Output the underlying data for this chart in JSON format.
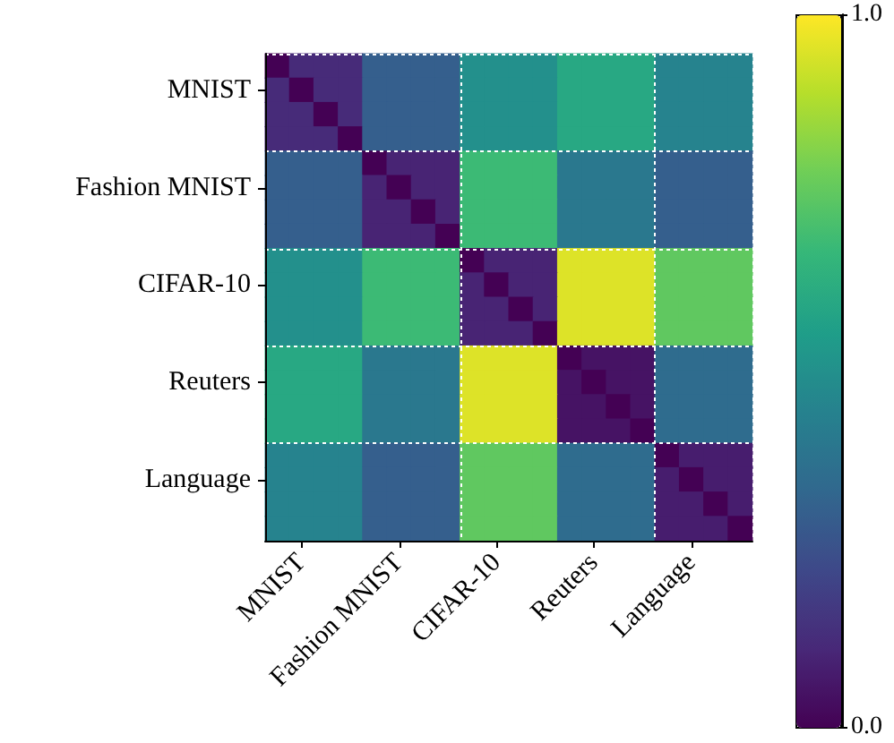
{
  "chart_data": {
    "type": "heatmap",
    "categories": [
      null,
      "MNIST",
      null,
      null,
      null,
      "Fashion MNIST",
      null,
      null,
      null,
      "CIFAR-10",
      null,
      null,
      null,
      "Reuters",
      null,
      null,
      null,
      "Language",
      null,
      null
    ],
    "y_categories": [
      null,
      "MNIST",
      null,
      null,
      null,
      "Fashion MNIST",
      null,
      null,
      null,
      "CIFAR-10",
      null,
      null,
      null,
      "Reuters",
      null,
      null,
      null,
      "Language",
      null,
      null
    ],
    "cells": [
      [
        0,
        0.12,
        0.12,
        0.12,
        0.3,
        0.3,
        0.3,
        0.3,
        0.5,
        0.5,
        0.5,
        0.5,
        0.6,
        0.6,
        0.6,
        0.6,
        0.45,
        0.45,
        0.45,
        0.45
      ],
      [
        0.12,
        0,
        0.12,
        0.12,
        0.3,
        0.3,
        0.3,
        0.3,
        0.5,
        0.5,
        0.5,
        0.5,
        0.6,
        0.6,
        0.6,
        0.6,
        0.45,
        0.45,
        0.45,
        0.45
      ],
      [
        0.12,
        0.12,
        0,
        0.12,
        0.3,
        0.3,
        0.3,
        0.3,
        0.5,
        0.5,
        0.5,
        0.5,
        0.6,
        0.6,
        0.6,
        0.6,
        0.45,
        0.45,
        0.45,
        0.45
      ],
      [
        0.12,
        0.12,
        0.12,
        0,
        0.3,
        0.3,
        0.3,
        0.3,
        0.5,
        0.5,
        0.5,
        0.5,
        0.6,
        0.6,
        0.6,
        0.6,
        0.45,
        0.45,
        0.45,
        0.45
      ],
      [
        0.3,
        0.3,
        0.3,
        0.3,
        0,
        0.1,
        0.1,
        0.1,
        0.68,
        0.68,
        0.68,
        0.68,
        0.4,
        0.4,
        0.4,
        0.4,
        0.3,
        0.3,
        0.3,
        0.3
      ],
      [
        0.3,
        0.3,
        0.3,
        0.3,
        0.1,
        0,
        0.1,
        0.1,
        0.68,
        0.68,
        0.68,
        0.68,
        0.4,
        0.4,
        0.4,
        0.4,
        0.3,
        0.3,
        0.3,
        0.3
      ],
      [
        0.3,
        0.3,
        0.3,
        0.3,
        0.1,
        0.1,
        0,
        0.1,
        0.68,
        0.68,
        0.68,
        0.68,
        0.4,
        0.4,
        0.4,
        0.4,
        0.3,
        0.3,
        0.3,
        0.3
      ],
      [
        0.3,
        0.3,
        0.3,
        0.3,
        0.1,
        0.1,
        0.1,
        0,
        0.68,
        0.68,
        0.68,
        0.68,
        0.4,
        0.4,
        0.4,
        0.4,
        0.3,
        0.3,
        0.3,
        0.3
      ],
      [
        0.5,
        0.5,
        0.5,
        0.5,
        0.68,
        0.68,
        0.68,
        0.68,
        0,
        0.1,
        0.1,
        0.1,
        0.95,
        0.95,
        0.95,
        0.95,
        0.75,
        0.75,
        0.75,
        0.75
      ],
      [
        0.5,
        0.5,
        0.5,
        0.5,
        0.68,
        0.68,
        0.68,
        0.68,
        0.1,
        0,
        0.1,
        0.1,
        0.95,
        0.95,
        0.95,
        0.95,
        0.75,
        0.75,
        0.75,
        0.75
      ],
      [
        0.5,
        0.5,
        0.5,
        0.5,
        0.68,
        0.68,
        0.68,
        0.68,
        0.1,
        0.1,
        0,
        0.1,
        0.95,
        0.95,
        0.95,
        0.95,
        0.75,
        0.75,
        0.75,
        0.75
      ],
      [
        0.5,
        0.5,
        0.5,
        0.5,
        0.68,
        0.68,
        0.68,
        0.68,
        0.1,
        0.1,
        0.1,
        0,
        0.95,
        0.95,
        0.95,
        0.95,
        0.75,
        0.75,
        0.75,
        0.75
      ],
      [
        0.6,
        0.6,
        0.6,
        0.6,
        0.4,
        0.4,
        0.4,
        0.4,
        0.95,
        0.95,
        0.95,
        0.95,
        0,
        0.05,
        0.05,
        0.05,
        0.35,
        0.35,
        0.35,
        0.35
      ],
      [
        0.6,
        0.6,
        0.6,
        0.6,
        0.4,
        0.4,
        0.4,
        0.4,
        0.95,
        0.95,
        0.95,
        0.95,
        0.05,
        0,
        0.05,
        0.05,
        0.35,
        0.35,
        0.35,
        0.35
      ],
      [
        0.6,
        0.6,
        0.6,
        0.6,
        0.4,
        0.4,
        0.4,
        0.4,
        0.95,
        0.95,
        0.95,
        0.95,
        0.05,
        0.05,
        0,
        0.05,
        0.35,
        0.35,
        0.35,
        0.35
      ],
      [
        0.6,
        0.6,
        0.6,
        0.6,
        0.4,
        0.4,
        0.4,
        0.4,
        0.95,
        0.95,
        0.95,
        0.95,
        0.05,
        0.05,
        0.05,
        0,
        0.35,
        0.35,
        0.35,
        0.35
      ],
      [
        0.45,
        0.45,
        0.45,
        0.45,
        0.3,
        0.3,
        0.3,
        0.3,
        0.75,
        0.75,
        0.75,
        0.75,
        0.35,
        0.35,
        0.35,
        0.35,
        0,
        0.08,
        0.08,
        0.08
      ],
      [
        0.45,
        0.45,
        0.45,
        0.45,
        0.3,
        0.3,
        0.3,
        0.3,
        0.75,
        0.75,
        0.75,
        0.75,
        0.35,
        0.35,
        0.35,
        0.35,
        0.08,
        0,
        0.08,
        0.08
      ],
      [
        0.45,
        0.45,
        0.45,
        0.45,
        0.3,
        0.3,
        0.3,
        0.3,
        0.75,
        0.75,
        0.75,
        0.75,
        0.35,
        0.35,
        0.35,
        0.35,
        0.08,
        0.08,
        0,
        0.08
      ],
      [
        0.45,
        0.45,
        0.45,
        0.45,
        0.3,
        0.3,
        0.3,
        0.3,
        0.75,
        0.75,
        0.75,
        0.75,
        0.35,
        0.35,
        0.35,
        0.35,
        0.08,
        0.08,
        0.08,
        0
      ]
    ],
    "clim": [
      0,
      1
    ],
    "cticks": [
      {
        "value": 0,
        "label": "0.0"
      },
      {
        "value": 1,
        "label": "1.0"
      }
    ],
    "grid": true
  }
}
